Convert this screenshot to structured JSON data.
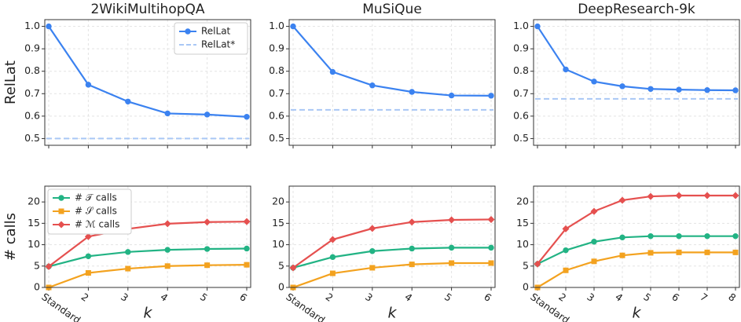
{
  "chart_data": [
    {
      "type": "line",
      "title": "2WikiMultihopQA",
      "y_label": "RelLat",
      "legend": "upper right",
      "grid": true,
      "categories": [
        "Standard",
        "2",
        "3",
        "4",
        "5",
        "6"
      ],
      "series": [
        {
          "name": "RelLat",
          "color": "#3b82f0",
          "marker": "circle",
          "values": [
            1.0,
            0.74,
            0.665,
            0.612,
            0.607,
            0.597
          ]
        }
      ],
      "hline": {
        "name": "RelLat*",
        "color": "#a9c7f5",
        "value": 0.5
      },
      "ylim": [
        0.47,
        1.03
      ],
      "yticks": [
        0.5,
        0.6,
        0.7,
        0.8,
        0.9,
        {
          "value": 1,
          "label": "1.0"
        }
      ]
    },
    {
      "type": "line",
      "title": "MuSiQue",
      "grid": true,
      "categories": [
        "Standard",
        "2",
        "3",
        "4",
        "5",
        "6"
      ],
      "series": [
        {
          "color": "#3b82f0",
          "marker": "circle",
          "values": [
            1.0,
            0.797,
            0.737,
            0.708,
            0.692,
            0.691
          ]
        }
      ],
      "hline": {
        "color": "#a9c7f5",
        "value": 0.628
      },
      "ylim": [
        0.47,
        1.03
      ],
      "yticks": [
        0.5,
        0.6,
        0.7,
        0.8,
        0.9,
        {
          "value": 1,
          "label": "1.0"
        }
      ]
    },
    {
      "type": "line",
      "title": "DeepResearch-9k",
      "grid": true,
      "categories": [
        "Standard",
        "2",
        "3",
        "4",
        "5",
        "6",
        "7",
        "8"
      ],
      "series": [
        {
          "color": "#3b82f0",
          "marker": "circle",
          "values": [
            1.0,
            0.808,
            0.754,
            0.733,
            0.721,
            0.718,
            0.716,
            0.715
          ]
        }
      ],
      "hline": {
        "color": "#a9c7f5",
        "value": 0.677
      },
      "ylim": [
        0.47,
        1.03
      ],
      "yticks": [
        0.5,
        0.6,
        0.7,
        0.8,
        0.9,
        {
          "value": 1,
          "label": "1.0"
        }
      ]
    },
    {
      "type": "line",
      "y_label": "# calls",
      "x_label": "k",
      "legend": "upper left",
      "grid": true,
      "categories": [
        "Standard",
        "2",
        "3",
        "4",
        "5",
        "6"
      ],
      "series": [
        {
          "name": "# 𝒯 calls",
          "color": "#22b384",
          "marker": "circle",
          "values": [
            4.9,
            7.3,
            8.3,
            8.8,
            9.0,
            9.1
          ]
        },
        {
          "name": "# 𝒮 calls",
          "color": "#f3a21f",
          "marker": "square",
          "values": [
            0,
            3.4,
            4.4,
            5.0,
            5.2,
            5.3
          ]
        },
        {
          "name": "# ℳ calls",
          "color": "#e5504f",
          "marker": "diamond",
          "values": [
            4.9,
            11.9,
            13.7,
            14.9,
            15.3,
            15.4
          ]
        }
      ],
      "ylim": [
        0,
        23.7
      ],
      "yticks": [
        0,
        5,
        10,
        15,
        20
      ]
    },
    {
      "type": "line",
      "x_label": "k",
      "grid": true,
      "categories": [
        "Standard",
        "2",
        "3",
        "4",
        "5",
        "6"
      ],
      "series": [
        {
          "color": "#22b384",
          "marker": "circle",
          "values": [
            4.6,
            7.1,
            8.5,
            9.1,
            9.3,
            9.3
          ]
        },
        {
          "color": "#f3a21f",
          "marker": "square",
          "values": [
            0,
            3.3,
            4.6,
            5.4,
            5.7,
            5.7
          ]
        },
        {
          "color": "#e5504f",
          "marker": "diamond",
          "values": [
            4.6,
            11.2,
            13.8,
            15.3,
            15.8,
            15.9
          ]
        }
      ],
      "ylim": [
        0,
        23.7
      ],
      "yticks": [
        0,
        5,
        10,
        15,
        20
      ]
    },
    {
      "type": "line",
      "x_label": "k",
      "grid": true,
      "categories": [
        "Standard",
        "2",
        "3",
        "4",
        "5",
        "6",
        "7",
        "8"
      ],
      "series": [
        {
          "color": "#22b384",
          "marker": "circle",
          "values": [
            5.5,
            8.7,
            10.7,
            11.7,
            12.0,
            12.0,
            12.0,
            12.0
          ]
        },
        {
          "color": "#f3a21f",
          "marker": "square",
          "values": [
            0,
            4.0,
            6.1,
            7.5,
            8.1,
            8.2,
            8.2,
            8.2
          ]
        },
        {
          "color": "#e5504f",
          "marker": "diamond",
          "values": [
            5.5,
            13.7,
            17.8,
            20.4,
            21.3,
            21.5,
            21.5,
            21.5
          ]
        }
      ],
      "ylim": [
        0,
        23.7
      ],
      "yticks": [
        0,
        5,
        10,
        15,
        20
      ]
    }
  ]
}
